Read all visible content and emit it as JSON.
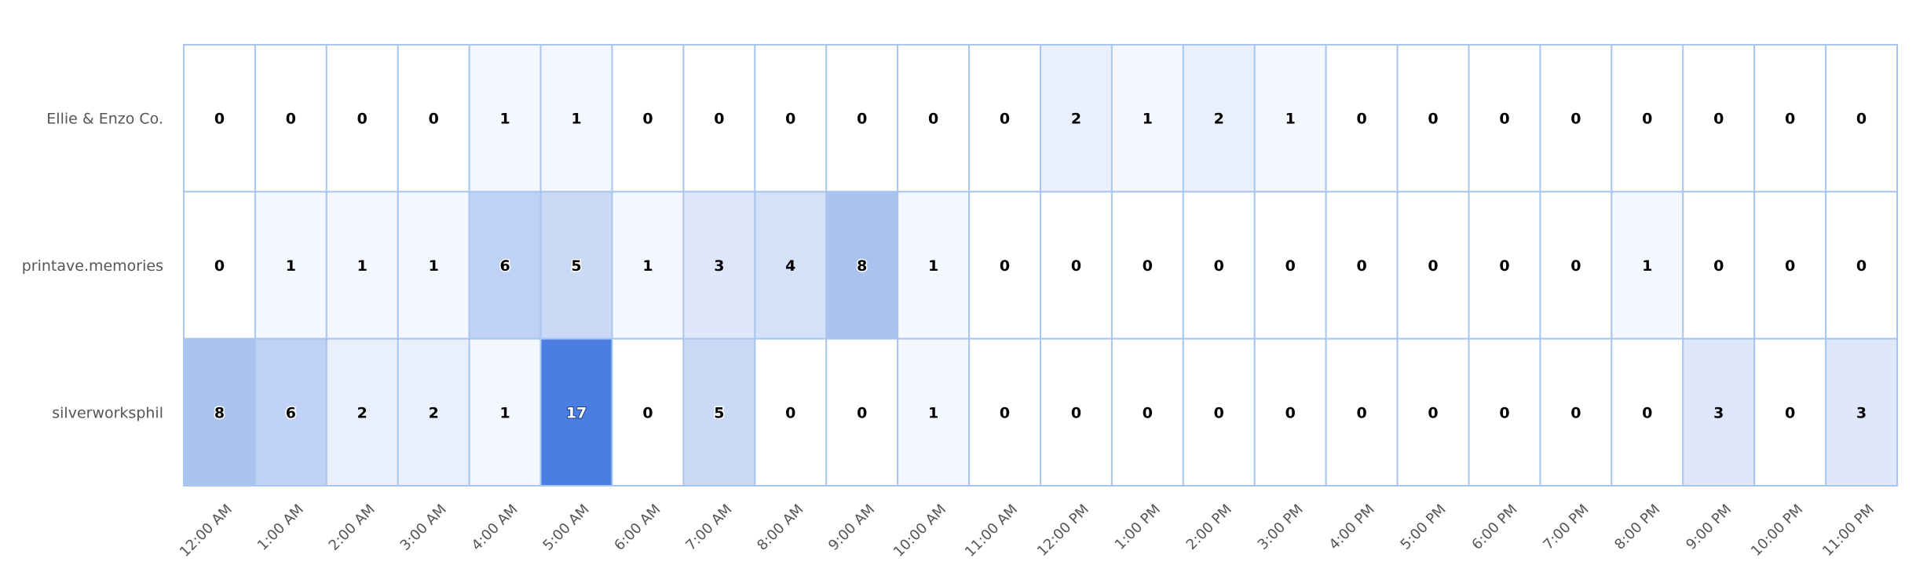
{
  "chart_data": {
    "type": "heatmap",
    "title": "",
    "xlabel": "",
    "ylabel": "",
    "rows": [
      "Ellie & Enzo Co.",
      "printave.memories",
      "silverworksphil"
    ],
    "columns": [
      "12:00 AM",
      "1:00 AM",
      "2:00 AM",
      "3:00 AM",
      "4:00 AM",
      "5:00 AM",
      "6:00 AM",
      "7:00 AM",
      "8:00 AM",
      "9:00 AM",
      "10:00 AM",
      "11:00 AM",
      "12:00 PM",
      "1:00 PM",
      "2:00 PM",
      "3:00 PM",
      "4:00 PM",
      "5:00 PM",
      "6:00 PM",
      "7:00 PM",
      "8:00 PM",
      "9:00 PM",
      "10:00 PM",
      "11:00 PM"
    ],
    "values": [
      [
        0,
        0,
        0,
        0,
        1,
        1,
        0,
        0,
        0,
        0,
        0,
        0,
        2,
        1,
        2,
        1,
        0,
        0,
        0,
        0,
        0,
        0,
        0,
        0
      ],
      [
        0,
        1,
        1,
        1,
        6,
        5,
        1,
        3,
        4,
        8,
        1,
        0,
        0,
        0,
        0,
        0,
        0,
        0,
        0,
        0,
        1,
        0,
        0,
        0
      ],
      [
        8,
        6,
        2,
        2,
        1,
        17,
        0,
        5,
        0,
        0,
        1,
        0,
        0,
        0,
        0,
        0,
        0,
        0,
        0,
        0,
        0,
        3,
        0,
        3
      ]
    ],
    "value_range": [
      0,
      17
    ],
    "colors": {
      "low": "#ffffff",
      "high": "#4a7ee0",
      "grid": "#a9c6ee"
    },
    "legend": "none"
  }
}
